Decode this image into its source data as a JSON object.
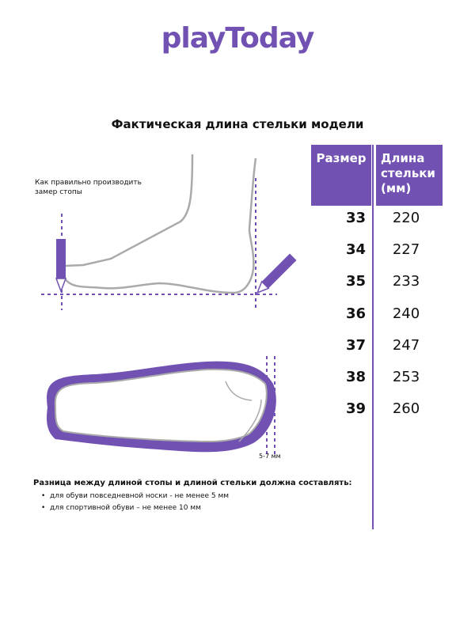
{
  "logo": "playToday",
  "title": "Фактическая длина стельки модели",
  "table": {
    "headers": [
      "Размер",
      "Длина стельки (мм)"
    ],
    "rows": [
      {
        "size": "33",
        "length": "220"
      },
      {
        "size": "34",
        "length": "227"
      },
      {
        "size": "35",
        "length": "233"
      },
      {
        "size": "36",
        "length": "240"
      },
      {
        "size": "37",
        "length": "247"
      },
      {
        "size": "38",
        "length": "253"
      },
      {
        "size": "39",
        "length": "260"
      }
    ]
  },
  "howto": "Как правильно производить замер стопы",
  "gap_label": "5-7 мм",
  "rule": {
    "title": "Разница между длиной стопы и длиной стельки должна составлять:",
    "items": [
      "для обуви повседневной носки -  не менее 5 мм",
      "для спортивной обуви – не менее 10 мм"
    ]
  },
  "colors": {
    "accent": "#7152b3",
    "outline": "#aaaaaa"
  }
}
